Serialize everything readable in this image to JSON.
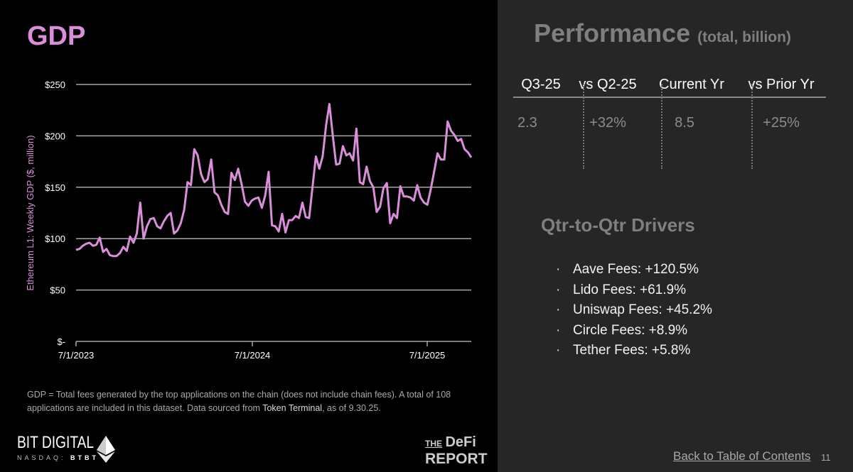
{
  "left": {
    "title": "GDP",
    "footnote_pre": "GDP = Total fees generated by the top applications on the chain (does not include chain fees). A total of 108 applications are included in this dataset. Data sourced from ",
    "footnote_source": "Token Terminal",
    "footnote_post": ", as of 9.30.25.",
    "logo_bit_digital": "BIT DIGITAL",
    "logo_nasdaq": "NASDAQ:",
    "logo_ticker": "BTBT",
    "logo_defi_the": "THE",
    "logo_defi_defi": "DeFi",
    "logo_defi_report": "REPORT"
  },
  "chart_data": {
    "type": "line",
    "title": "",
    "ylabel": "Ethereum L1: Weekly GDP ($, million)",
    "xlabel": "",
    "ylim": [
      0,
      250
    ],
    "yticks": [
      0,
      50,
      100,
      150,
      200,
      250
    ],
    "ytick_labels": [
      "$-",
      "$50",
      "$100",
      "$150",
      "$200",
      "$250"
    ],
    "xtick_labels": [
      "7/1/2023",
      "7/1/2024",
      "7/1/2025"
    ],
    "grid": true,
    "color": "#d98ed9",
    "series": [
      {
        "name": "Weekly GDP",
        "values": [
          89,
          90,
          93,
          95,
          96,
          93,
          94,
          101,
          87,
          90,
          84,
          83,
          83,
          86,
          92,
          88,
          102,
          96,
          105,
          135,
          100,
          112,
          119,
          120,
          112,
          110,
          117,
          122,
          125,
          105,
          108,
          115,
          128,
          155,
          152,
          187,
          181,
          163,
          155,
          158,
          177,
          145,
          142,
          133,
          126,
          124,
          164,
          157,
          168,
          153,
          136,
          132,
          137,
          139,
          140,
          130,
          142,
          165,
          113,
          112,
          107,
          124,
          106,
          118,
          118,
          122,
          120,
          135,
          121,
          120,
          150,
          180,
          168,
          180,
          210,
          231,
          200,
          172,
          173,
          190,
          181,
          183,
          176,
          207,
          155,
          153,
          170,
          156,
          150,
          126,
          131,
          149,
          154,
          115,
          124,
          120,
          151,
          141,
          141,
          140,
          137,
          152,
          140,
          135,
          133,
          148,
          165,
          183,
          177,
          177,
          214,
          205,
          201,
          195,
          197,
          187,
          184,
          179
        ]
      }
    ]
  },
  "right": {
    "title": "Performance",
    "subtitle": "(total, billion)",
    "headers": [
      "Q3-25",
      "vs Q2-25",
      "Current Yr",
      "vs Prior Yr"
    ],
    "values": [
      "2.3",
      "+32%",
      "8.5",
      "+25%"
    ],
    "drivers_title": "Qtr-to-Qtr Drivers",
    "bullet": "·",
    "drivers": [
      "Aave Fees: +120.5%",
      "Lido Fees: +61.9%",
      "Uniswap Fees: +45.2%",
      "Circle Fees: +8.9%",
      "Tether Fees: +5.8%"
    ],
    "back_link": "Back to Table of Contents",
    "page_number": "11"
  }
}
